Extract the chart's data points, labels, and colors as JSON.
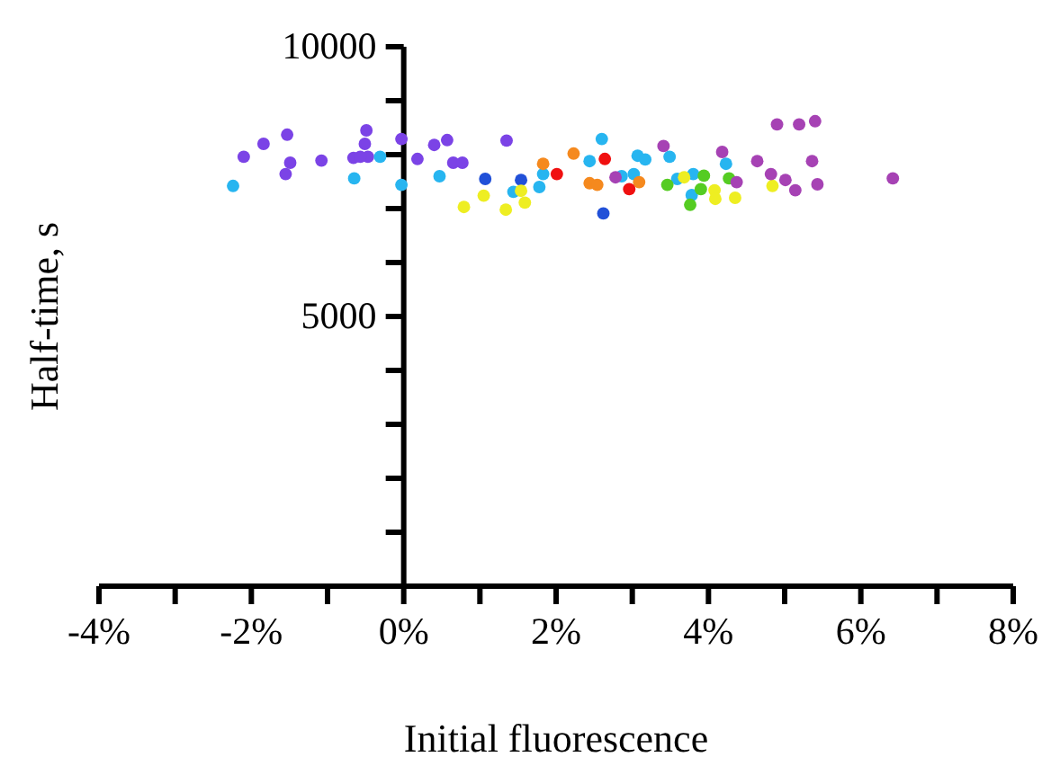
{
  "chart_data": {
    "type": "scatter",
    "xlabel": "Initial fluorescence",
    "ylabel": "Half-time, s",
    "xlim": [
      -4,
      8
    ],
    "ylim": [
      0,
      10000
    ],
    "xticks": [
      {
        "value": -4,
        "label": "-4%"
      },
      {
        "value": -3,
        "label": null
      },
      {
        "value": -2,
        "label": "-2%"
      },
      {
        "value": -1,
        "label": null
      },
      {
        "value": 0,
        "label": "0%"
      },
      {
        "value": 1,
        "label": null
      },
      {
        "value": 2,
        "label": "2%"
      },
      {
        "value": 3,
        "label": null
      },
      {
        "value": 4,
        "label": "4%"
      },
      {
        "value": 5,
        "label": null
      },
      {
        "value": 6,
        "label": "6%"
      },
      {
        "value": 7,
        "label": null
      },
      {
        "value": 8,
        "label": "8%"
      }
    ],
    "yticks": [
      {
        "value": 1000,
        "label": null
      },
      {
        "value": 2000,
        "label": null
      },
      {
        "value": 3000,
        "label": null
      },
      {
        "value": 4000,
        "label": null
      },
      5000,
      {
        "value": 6000,
        "label": null
      },
      {
        "value": 7000,
        "label": null
      },
      {
        "value": 8000,
        "label": null
      },
      {
        "value": 9000,
        "label": null
      },
      10000
    ],
    "marker": "circle",
    "grid": false,
    "series": [
      {
        "color": "#7b43e6",
        "x": [
          -2.1,
          -1.84,
          -1.53,
          -1.49,
          -1.55,
          -1.08,
          -0.66,
          -0.49,
          -0.51,
          -0.47,
          -0.57,
          -0.03,
          0.18,
          0.4,
          0.57,
          0.65,
          0.77,
          1.35
        ],
        "values": [
          7960,
          8200,
          8370,
          7850,
          7640,
          7890,
          7940,
          8450,
          8200,
          7960,
          7960,
          8290,
          7920,
          8180,
          8270,
          7850,
          7850,
          8260
        ]
      },
      {
        "color": "#27b5f0",
        "x": [
          -2.24,
          -0.65,
          -0.31,
          -0.03,
          0.47,
          1.44,
          1.78,
          1.83,
          2.44,
          2.6,
          2.86,
          3.02,
          3.07,
          3.17,
          3.49,
          3.59,
          3.8,
          3.78,
          4.23
        ],
        "values": [
          7420,
          7560,
          7960,
          7440,
          7600,
          7310,
          7400,
          7640,
          7880,
          8290,
          7600,
          7640,
          7980,
          7910,
          7960,
          7550,
          7640,
          7250,
          7830
        ]
      },
      {
        "color": "#2150d8",
        "x": [
          1.07,
          1.54,
          1.82,
          2.62
        ],
        "values": [
          7550,
          7530,
          null,
          6910
        ]
      },
      {
        "color": "#eeee22",
        "x": [
          0.79,
          1.05,
          1.34,
          1.54,
          1.59,
          3.68,
          4.08,
          4.09,
          4.35,
          4.84
        ],
        "values": [
          7030,
          7240,
          6980,
          7330,
          7110,
          7580,
          7340,
          7180,
          7200,
          7420
        ]
      },
      {
        "color": "#f5891e",
        "x": [
          1.83,
          2.23,
          2.44,
          2.54,
          3.09
        ],
        "values": [
          7830,
          8020,
          7470,
          7440,
          7490
        ]
      },
      {
        "color": "#f01010",
        "x": [
          2.01,
          2.64,
          2.96
        ],
        "values": [
          7640,
          7920,
          7360
        ]
      },
      {
        "color": "#55cc22",
        "x": [
          3.46,
          3.76,
          3.9,
          3.94,
          4.27
        ],
        "values": [
          7440,
          7070,
          7360,
          7610,
          7560
        ]
      },
      {
        "color": "#a642b4",
        "x": [
          2.78,
          3.41,
          4.18,
          4.37,
          4.64,
          4.82,
          5.01,
          5.14,
          5.43,
          5.36,
          4.9,
          5.19,
          5.4,
          6.42
        ],
        "values": [
          7580,
          8160,
          8050,
          7490,
          7880,
          7640,
          7530,
          7340,
          7450,
          7880,
          8560,
          8560,
          8620,
          7560
        ]
      }
    ]
  }
}
